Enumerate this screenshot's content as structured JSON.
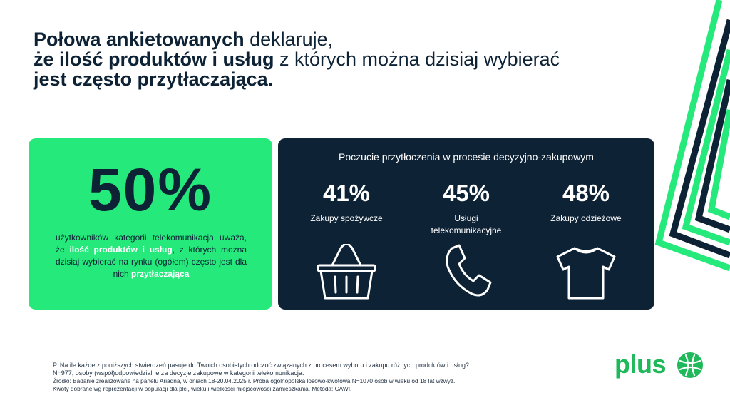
{
  "title": {
    "part1_bold": "Połowa ankietowanych",
    "part1_rest": " deklaruje,",
    "part2_bold": "że ilość produktów i usług",
    "part2_rest": " z których można dzisiaj wybierać",
    "part3_bold": "jest często przytłaczająca."
  },
  "left_card": {
    "big_value": "50%",
    "desc_before": "użytkowników kategorii telekomunikacja uważa, że ",
    "desc_hl1": "ilość produktów i usług",
    "desc_mid": ", z których można dzisiaj wybierać na rynku (ogółem) często jest dla nich ",
    "desc_hl2": "przytłaczająca",
    "colors": {
      "background": "#26e97c",
      "highlight": "#ffffff"
    }
  },
  "right_card": {
    "heading": "Poczucie przytłoczenia w procesie decyzyjno-zakupowym",
    "stats": [
      {
        "value": "41%",
        "label": "Zakupy spożywcze",
        "icon": "shopping-basket-icon"
      },
      {
        "value": "45%",
        "label": "Usługi telekomunikacyjne",
        "icon": "phone-icon"
      },
      {
        "value": "48%",
        "label": "Zakupy odzieżowe",
        "icon": "t-shirt-icon"
      }
    ],
    "colors": {
      "background": "#0d2235",
      "text": "#ffffff"
    }
  },
  "footnote": {
    "line1": "P. Na ile każde z poniższych stwierdzeń pasuje do Twoich osobistych odczuć związanych z procesem wyboru i zakupu różnych produktów i usług?",
    "line2": "N=977, osoby (współ)odpowiedzialne za decyzje zakupowe w kategorii telekomunikacja.",
    "line3": "Źródło: Badanie zrealizowane na panelu Ariadna, w dniach 18-20.04.2025 r. Próba ogólnopolska losowo-kwotowa N=1070 osób w wieku od 18 lat wzwyż.",
    "line4": "Kwoty dobrane wg reprezentacji w populacji dla płci, wieku i wielkości miejscowości zamieszkania. Metoda: CAWI."
  },
  "logo": {
    "text": "plus",
    "mark_icon": "plus-logo-mark-icon",
    "color": "#1fb85a"
  },
  "decoration": {
    "icon": "stripes-decoration-icon",
    "colors": [
      "#26e97c",
      "#0d2235"
    ]
  }
}
